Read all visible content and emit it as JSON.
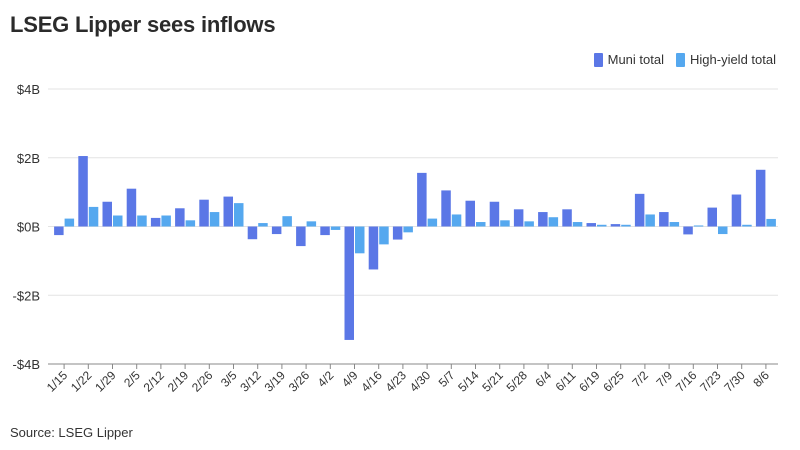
{
  "title": "LSEG Lipper sees inflows",
  "source": "Source: LSEG Lipper",
  "chart_data": {
    "type": "bar",
    "title": "LSEG Lipper sees inflows",
    "xlabel": "",
    "ylabel": "",
    "ylim": [
      -4,
      4
    ],
    "y_ticks": [
      {
        "value": 4,
        "label": "$4B"
      },
      {
        "value": 2,
        "label": "$2B"
      },
      {
        "value": 0,
        "label": "$0B"
      },
      {
        "value": -2,
        "label": "-$2B"
      },
      {
        "value": -4,
        "label": "-$4B"
      }
    ],
    "grid": true,
    "legend_position": "top-right",
    "categories": [
      "1/15",
      "1/22",
      "1/29",
      "2/5",
      "2/12",
      "2/19",
      "2/26",
      "3/5",
      "3/12",
      "3/19",
      "3/26",
      "4/2",
      "4/9",
      "4/16",
      "4/23",
      "4/30",
      "5/7",
      "5/14",
      "5/21",
      "5/28",
      "6/4",
      "6/11",
      "6/19",
      "6/25",
      "7/2",
      "7/9",
      "7/16",
      "7/23",
      "7/30",
      "8/6"
    ],
    "series": [
      {
        "name": "Muni total",
        "color": "#5b77e6",
        "values": [
          -0.25,
          2.05,
          0.72,
          1.1,
          0.25,
          0.53,
          0.78,
          0.87,
          -0.37,
          -0.22,
          -0.57,
          -0.25,
          -3.3,
          -1.25,
          -0.38,
          1.56,
          1.05,
          0.75,
          0.72,
          0.5,
          0.42,
          0.5,
          0.1,
          0.07,
          0.95,
          0.42,
          -0.23,
          0.55,
          0.93,
          1.65
        ]
      },
      {
        "name": "High-yield total",
        "color": "#55a8ef",
        "values": [
          0.23,
          0.57,
          0.32,
          0.32,
          0.32,
          0.18,
          0.42,
          0.68,
          0.1,
          0.3,
          0.15,
          -0.1,
          -0.78,
          -0.52,
          -0.17,
          0.23,
          0.35,
          0.13,
          0.18,
          0.15,
          0.27,
          0.13,
          0.05,
          0.05,
          0.35,
          0.13,
          0.03,
          -0.22,
          0.05,
          0.22
        ]
      }
    ]
  }
}
